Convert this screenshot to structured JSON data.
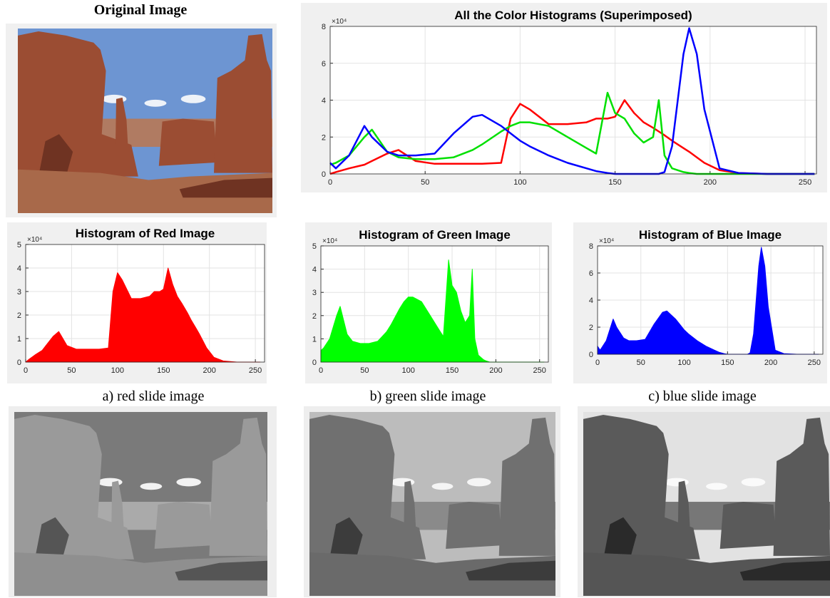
{
  "original_image": {
    "title": "Original Image"
  },
  "captions": [
    "a) red slide image",
    "b) green slide image",
    "c) blue slide image"
  ],
  "chart_data": [
    {
      "type": "line",
      "title": "All the Color Histograms (Superimposed)",
      "y_scale_label": "×10⁴",
      "x": [
        0,
        3,
        10,
        18,
        22,
        30,
        36,
        45,
        55,
        65,
        75,
        80,
        90,
        95,
        100,
        105,
        115,
        125,
        135,
        140,
        146,
        150,
        155,
        160,
        165,
        170,
        173,
        176,
        180,
        186,
        189,
        193,
        197,
        205,
        215,
        230,
        255
      ],
      "series": [
        {
          "color": "#ff0000",
          "values": [
            0,
            0.1,
            0.3,
            0.5,
            0.7,
            1.1,
            1.3,
            0.7,
            0.55,
            0.55,
            0.55,
            0.55,
            0.6,
            3.0,
            3.8,
            3.5,
            2.7,
            2.7,
            2.8,
            3.0,
            3.0,
            3.1,
            4.0,
            3.3,
            2.8,
            2.5,
            2.3,
            2.1,
            1.8,
            1.4,
            1.2,
            0.9,
            0.6,
            0.2,
            0.05,
            0,
            0
          ]
        },
        {
          "color": "#00e000",
          "values": [
            0.5,
            0.6,
            1.0,
            2.0,
            2.4,
            1.2,
            0.9,
            0.8,
            0.8,
            0.9,
            1.3,
            1.6,
            2.3,
            2.6,
            2.8,
            2.8,
            2.6,
            2.0,
            1.4,
            1.1,
            4.4,
            3.3,
            3.0,
            2.2,
            1.7,
            2.0,
            4.0,
            1.0,
            0.3,
            0.1,
            0.05,
            0,
            0,
            0,
            0,
            0,
            0
          ]
        },
        {
          "color": "#0000ff",
          "values": [
            0.6,
            0.3,
            1.0,
            2.6,
            2.0,
            1.2,
            1.0,
            1.0,
            1.1,
            2.2,
            3.1,
            3.2,
            2.6,
            2.2,
            1.8,
            1.5,
            1.0,
            0.6,
            0.3,
            0.15,
            0.05,
            0,
            0,
            0,
            0,
            0,
            0,
            0.1,
            1.5,
            6.5,
            7.9,
            6.5,
            3.5,
            0.3,
            0.05,
            0,
            0
          ]
        }
      ],
      "xlim": [
        0,
        256
      ],
      "xticks": [
        0,
        50,
        100,
        150,
        200,
        250
      ],
      "ylim": [
        0,
        8
      ],
      "yticks": [
        0,
        2,
        4,
        6,
        8
      ],
      "grid": true
    },
    {
      "type": "area",
      "title": "Histogram of Red Image",
      "y_scale_label": "×10⁴",
      "color": "#ff0000",
      "x": [
        0,
        3,
        10,
        18,
        22,
        30,
        36,
        45,
        55,
        65,
        75,
        80,
        90,
        95,
        100,
        105,
        115,
        125,
        135,
        140,
        146,
        150,
        155,
        160,
        165,
        170,
        173,
        176,
        180,
        186,
        189,
        193,
        197,
        205,
        215,
        230,
        255
      ],
      "values": [
        0,
        0.1,
        0.3,
        0.5,
        0.7,
        1.1,
        1.3,
        0.7,
        0.55,
        0.55,
        0.55,
        0.55,
        0.6,
        3.0,
        3.8,
        3.5,
        2.7,
        2.7,
        2.8,
        3.0,
        3.0,
        3.1,
        4.0,
        3.3,
        2.8,
        2.5,
        2.3,
        2.1,
        1.8,
        1.4,
        1.2,
        0.9,
        0.6,
        0.2,
        0.05,
        0,
        0
      ],
      "xlim": [
        0,
        260
      ],
      "xticks": [
        0,
        50,
        100,
        150,
        200,
        250
      ],
      "ylim": [
        0,
        5
      ],
      "yticks": [
        0,
        1,
        2,
        3,
        4,
        5
      ],
      "grid": true
    },
    {
      "type": "area",
      "title": "Histogram of Green Image",
      "y_scale_label": "×10⁴",
      "color": "#00ff00",
      "x": [
        0,
        3,
        10,
        18,
        22,
        30,
        36,
        45,
        55,
        65,
        75,
        80,
        90,
        95,
        100,
        105,
        115,
        125,
        135,
        140,
        146,
        150,
        155,
        160,
        165,
        170,
        173,
        176,
        180,
        186,
        189,
        193,
        197,
        205,
        215,
        230,
        255
      ],
      "values": [
        0.5,
        0.6,
        1.0,
        2.0,
        2.4,
        1.2,
        0.9,
        0.8,
        0.8,
        0.9,
        1.3,
        1.6,
        2.3,
        2.6,
        2.8,
        2.8,
        2.6,
        2.0,
        1.4,
        1.1,
        4.4,
        3.3,
        3.0,
        2.2,
        1.7,
        2.0,
        4.0,
        1.0,
        0.3,
        0.1,
        0.05,
        0,
        0,
        0,
        0,
        0,
        0
      ],
      "xlim": [
        0,
        260
      ],
      "xticks": [
        0,
        50,
        100,
        150,
        200,
        250
      ],
      "ylim": [
        0,
        5
      ],
      "yticks": [
        0,
        1,
        2,
        3,
        4,
        5
      ],
      "grid": true
    },
    {
      "type": "area",
      "title": "Histogram of Blue Image",
      "y_scale_label": "×10⁴",
      "color": "#0000ff",
      "x": [
        0,
        3,
        10,
        18,
        22,
        30,
        36,
        45,
        55,
        65,
        75,
        80,
        90,
        95,
        100,
        105,
        115,
        125,
        135,
        140,
        146,
        150,
        155,
        160,
        165,
        170,
        173,
        176,
        180,
        186,
        189,
        193,
        197,
        205,
        215,
        230,
        255
      ],
      "values": [
        0.6,
        0.3,
        1.0,
        2.6,
        2.0,
        1.2,
        1.0,
        1.0,
        1.1,
        2.2,
        3.1,
        3.2,
        2.6,
        2.2,
        1.8,
        1.5,
        1.0,
        0.6,
        0.3,
        0.15,
        0.05,
        0,
        0,
        0,
        0,
        0,
        0,
        0.1,
        1.5,
        6.5,
        7.9,
        6.5,
        3.5,
        0.3,
        0.05,
        0,
        0
      ],
      "xlim": [
        0,
        260
      ],
      "xticks": [
        0,
        50,
        100,
        150,
        200,
        250
      ],
      "ylim": [
        0,
        8
      ],
      "yticks": [
        0,
        2,
        4,
        6,
        8
      ],
      "grid": true
    }
  ]
}
